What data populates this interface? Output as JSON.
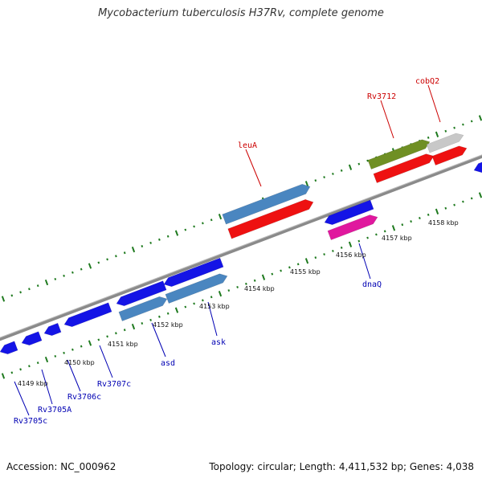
{
  "title": "Mycobacterium tuberculosis H37Rv, complete genome",
  "footer": {
    "accession": "Accession: NC_000962",
    "summary": "Topology: circular; Length: 4,411,532 bp; Genes: 4,038"
  },
  "colors": {
    "backbone": "#8a8a8a",
    "tick": "#1f7a1f",
    "blue_gene": "#1414e6",
    "steel_gene": "#4a86c0",
    "red_gene": "#ee1111",
    "pink_gene": "#e0189e",
    "olive_gene": "#6f8f24",
    "grey_gene": "#c8c8c8",
    "label_blue": "#0000b3",
    "label_red": "#cc0000"
  },
  "scale_labels": [
    "4149 kbp",
    "4150 kbp",
    "4151 kbp",
    "4152 kbp",
    "4153 kbp",
    "4154 kbp",
    "4155 kbp",
    "4156 kbp",
    "4157 kbp",
    "4158 kbp"
  ],
  "gene_labels_upper": [
    "leuA",
    "Rv3712",
    "cobQ2"
  ],
  "gene_labels_lower": [
    "Rv3705c",
    "Rv3705A",
    "Rv3706c",
    "Rv3707c",
    "asd",
    "ask",
    "dnaQ"
  ]
}
